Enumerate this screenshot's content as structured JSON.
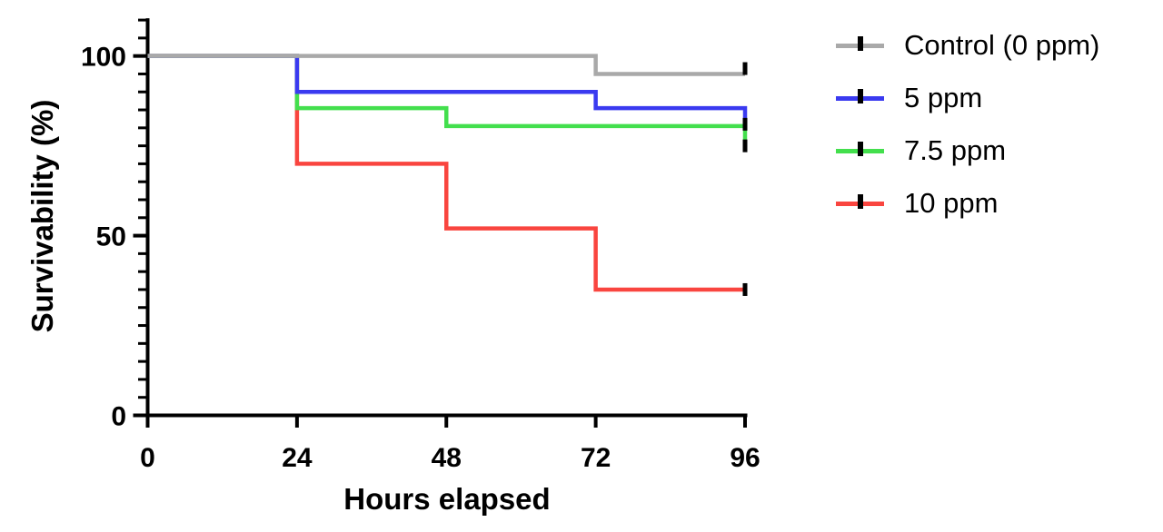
{
  "chart_data": {
    "type": "line",
    "subtype": "survival-step-curve",
    "title": "",
    "xlabel": "Hours elapsed",
    "ylabel": "Survivability (%)",
    "xlim": [
      0,
      96
    ],
    "ylim": [
      0,
      110
    ],
    "x_ticks": [
      0,
      24,
      48,
      72,
      96
    ],
    "y_major_ticks": [
      0,
      50,
      100
    ],
    "y_minor_tick_step": 5,
    "grid": false,
    "legend_position": "right-outside",
    "axis_color": "#000000",
    "censor_marker_color": "#000000",
    "series": [
      {
        "name": "Control (0 ppm)",
        "color": "#A9A9A9",
        "points": [
          [
            0,
            100
          ],
          [
            72,
            100
          ],
          [
            72,
            95
          ],
          [
            96,
            95
          ]
        ],
        "censor_tick_at": [
          96,
          96.5
        ]
      },
      {
        "name": "5 ppm",
        "color": "#3A3AF0",
        "points": [
          [
            0,
            100
          ],
          [
            24,
            100
          ],
          [
            24,
            90
          ],
          [
            72,
            90
          ],
          [
            72,
            85.5
          ],
          [
            96,
            85.5
          ],
          [
            96,
            81
          ]
        ],
        "censor_tick_at": [
          96,
          81
        ]
      },
      {
        "name": "7.5 ppm",
        "color": "#43DF4D",
        "points": [
          [
            0,
            100
          ],
          [
            24,
            100
          ],
          [
            24,
            85.5
          ],
          [
            48,
            85.5
          ],
          [
            48,
            80.5
          ],
          [
            96,
            80.5
          ],
          [
            96,
            75
          ]
        ],
        "censor_tick_at": [
          96,
          75
        ]
      },
      {
        "name": "10 ppm",
        "color": "#F9453F",
        "points": [
          [
            0,
            100
          ],
          [
            24,
            100
          ],
          [
            24,
            70
          ],
          [
            48,
            70
          ],
          [
            48,
            52
          ],
          [
            72,
            52
          ],
          [
            72,
            35
          ],
          [
            96,
            35
          ]
        ],
        "censor_tick_at": [
          96,
          35
        ]
      }
    ]
  }
}
